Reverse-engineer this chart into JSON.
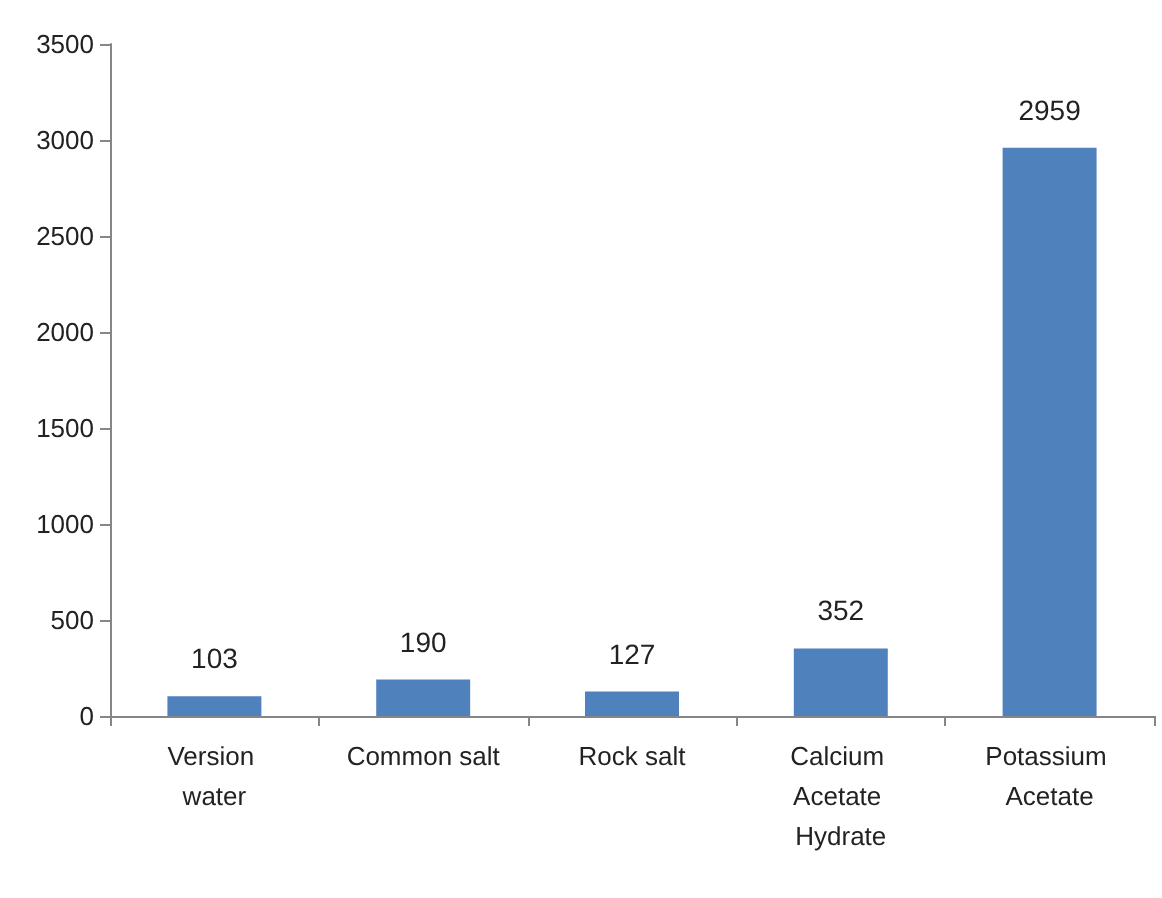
{
  "chart_data": {
    "type": "bar",
    "categories": [
      "Version water",
      "Common salt",
      "Rock salt",
      "Calcium Acetate Hydrate",
      "Potassium Acetate"
    ],
    "values": [
      103,
      190,
      127,
      352,
      2959
    ],
    "color": "#4f81bd",
    "ylim": [
      0,
      3500
    ],
    "yticks": [
      0,
      500,
      1000,
      1500,
      2000,
      2500,
      3000,
      3500
    ],
    "data_labels": true,
    "grid": false
  }
}
